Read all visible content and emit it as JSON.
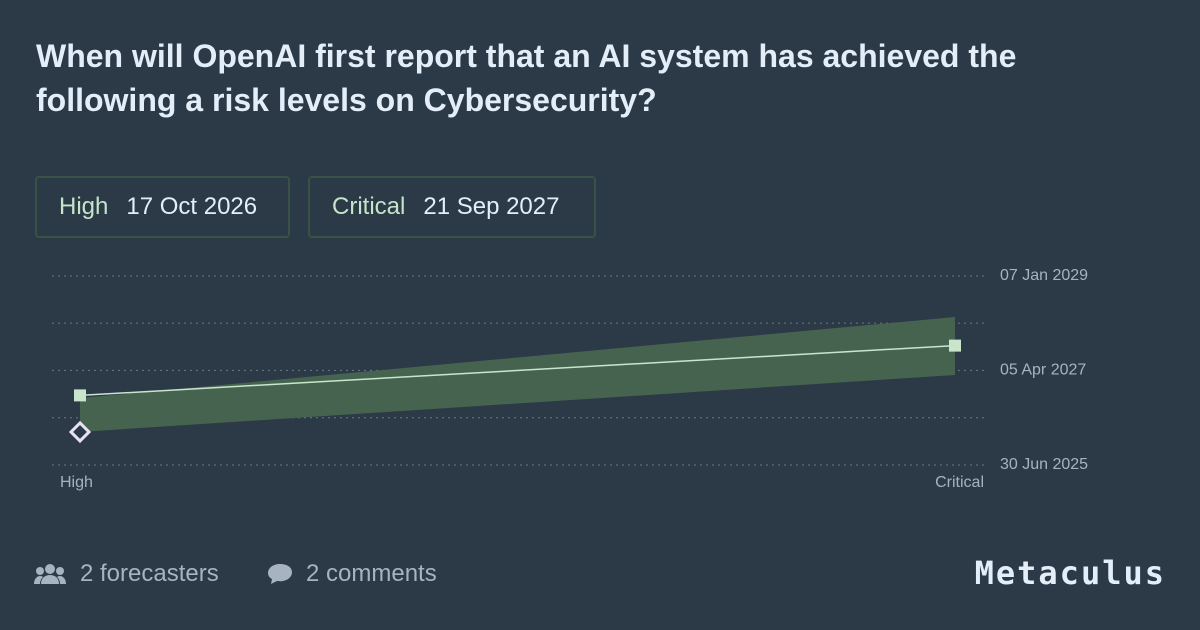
{
  "chart_data": {
    "type": "line",
    "title": "When will OpenAI first report that an AI system has achieved the following a risk levels on Cybersecurity?",
    "categories": [
      "High",
      "Critical"
    ],
    "values": [
      "2026-10-17",
      "2027-09-21"
    ],
    "value_labels": [
      "17 Oct 2026",
      "21 Sep 2027"
    ],
    "lower": [
      "2026-02-10",
      "2027-03-05"
    ],
    "upper": [
      "2026-09-29",
      "2028-04-03"
    ],
    "marker_values": [
      "2026-02-10",
      null
    ],
    "color": "#c9e6cd",
    "band_color": "#46634f",
    "marker_color": "#e8e0f5",
    "ylim": [
      "2025-06-30",
      "2029-01-07"
    ],
    "yticks": [
      {
        "value": "2025-06-30",
        "label": "30 Jun 2025"
      },
      {
        "value": "2027-04-05",
        "label": "05 Apr 2027"
      },
      {
        "value": "2029-01-07",
        "label": "07 Jan 2029"
      }
    ],
    "minor_yticks": [
      "2026-05-18",
      "2028-02-21"
    ],
    "grid": true
  },
  "footer": {
    "forecasters": "2 forecasters",
    "comments": "2 comments",
    "brand": "Metaculus"
  }
}
